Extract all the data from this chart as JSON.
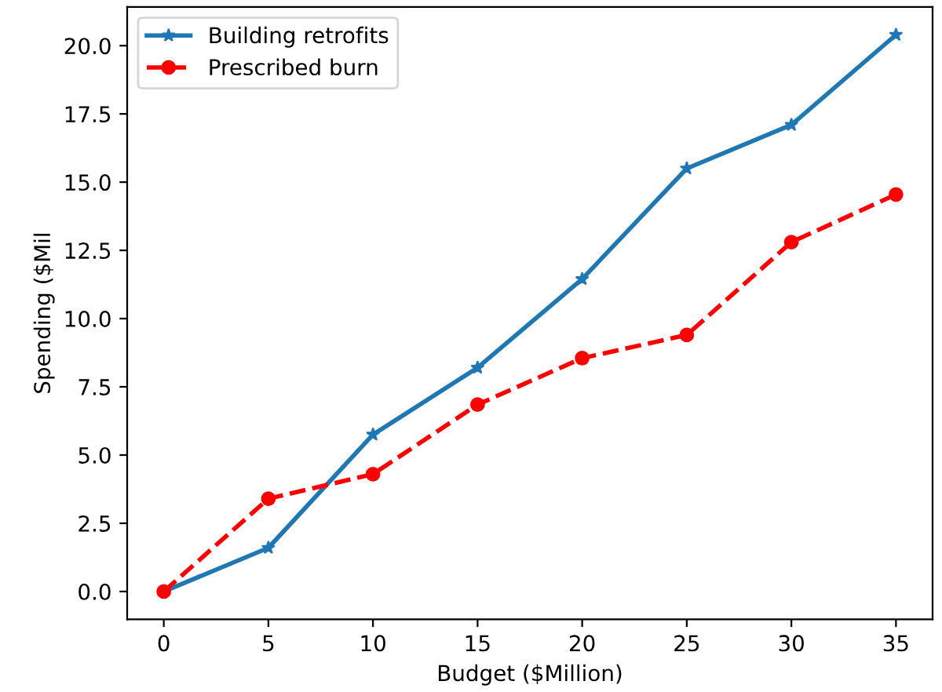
{
  "chart_data": {
    "type": "line",
    "xlabel": "Budget ($Million)",
    "ylabel": "Spending ($Mil",
    "x": [
      0,
      5,
      10,
      15,
      20,
      25,
      30,
      35
    ],
    "series": [
      {
        "name": "Building retrofits",
        "color": "#1f77b4",
        "marker": "star",
        "line_style": "solid",
        "values": [
          0,
          1.6,
          5.75,
          8.2,
          11.45,
          15.5,
          17.1,
          20.4
        ]
      },
      {
        "name": "Prescribed burn",
        "color": "#ff0000",
        "marker": "circle",
        "line_style": "dashed",
        "values": [
          0,
          3.4,
          4.3,
          6.85,
          8.55,
          9.4,
          12.8,
          14.55
        ]
      }
    ],
    "xlim": [
      -1.75,
      36.75
    ],
    "ylim": [
      -1.02,
      21.42
    ],
    "xticks": [
      0,
      5,
      10,
      15,
      20,
      25,
      30,
      35
    ],
    "yticks": [
      {
        "value": 0,
        "label": "0.0"
      },
      {
        "value": 2.5,
        "label": "2.5"
      },
      {
        "value": 5,
        "label": "5.0"
      },
      {
        "value": 7.5,
        "label": "7.5"
      },
      {
        "value": 10,
        "label": "10.0"
      },
      {
        "value": 12.5,
        "label": "12.5"
      },
      {
        "value": 15,
        "label": "15.0"
      },
      {
        "value": 17.5,
        "label": "17.5"
      },
      {
        "value": 20,
        "label": "20.0"
      }
    ],
    "grid": false,
    "legend": "top left"
  }
}
